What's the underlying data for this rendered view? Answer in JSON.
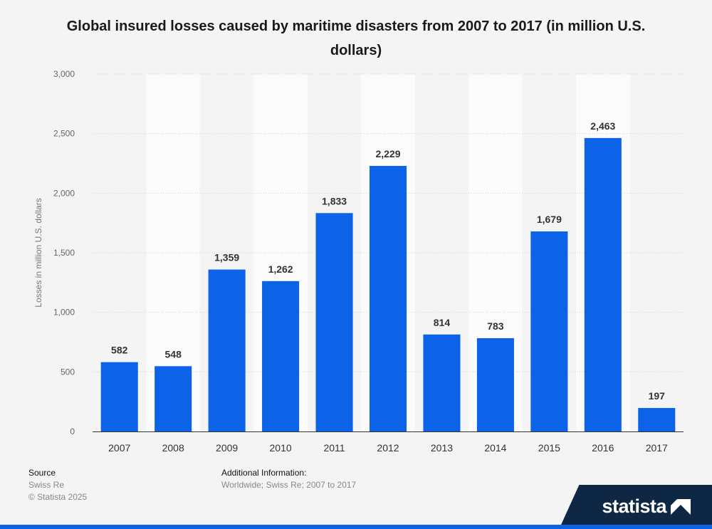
{
  "chart_data": {
    "type": "bar",
    "title": "Global insured losses caused by maritime disasters from 2007 to 2017 (in million U.S. dollars)",
    "xlabel": "",
    "ylabel": "Losses in million U.S. dollars",
    "categories": [
      "2007",
      "2008",
      "2009",
      "2010",
      "2011",
      "2012",
      "2013",
      "2014",
      "2015",
      "2016",
      "2017"
    ],
    "values": [
      582,
      548,
      1359,
      1262,
      1833,
      2229,
      814,
      783,
      1679,
      2463,
      197
    ],
    "value_labels": [
      "582",
      "548",
      "1,359",
      "1,262",
      "1,833",
      "2,229",
      "814",
      "783",
      "1,679",
      "2,463",
      "197"
    ],
    "ylim": [
      0,
      3000
    ],
    "yticks": [
      0,
      500,
      1000,
      1500,
      2000,
      2500,
      3000
    ],
    "ytick_labels": [
      "0",
      "500",
      "1,000",
      "1,500",
      "2,000",
      "2,500",
      "3,000"
    ],
    "grid": true,
    "bar_color": "#0d63e8"
  },
  "footer": {
    "source_heading": "Source",
    "source_value": "Swiss Re",
    "copyright": "© Statista 2025",
    "additional_heading": "Additional Information:",
    "additional_value": "Worldwide; Swiss Re; 2007 to 2017"
  },
  "brand": {
    "logo_text": "statista"
  }
}
